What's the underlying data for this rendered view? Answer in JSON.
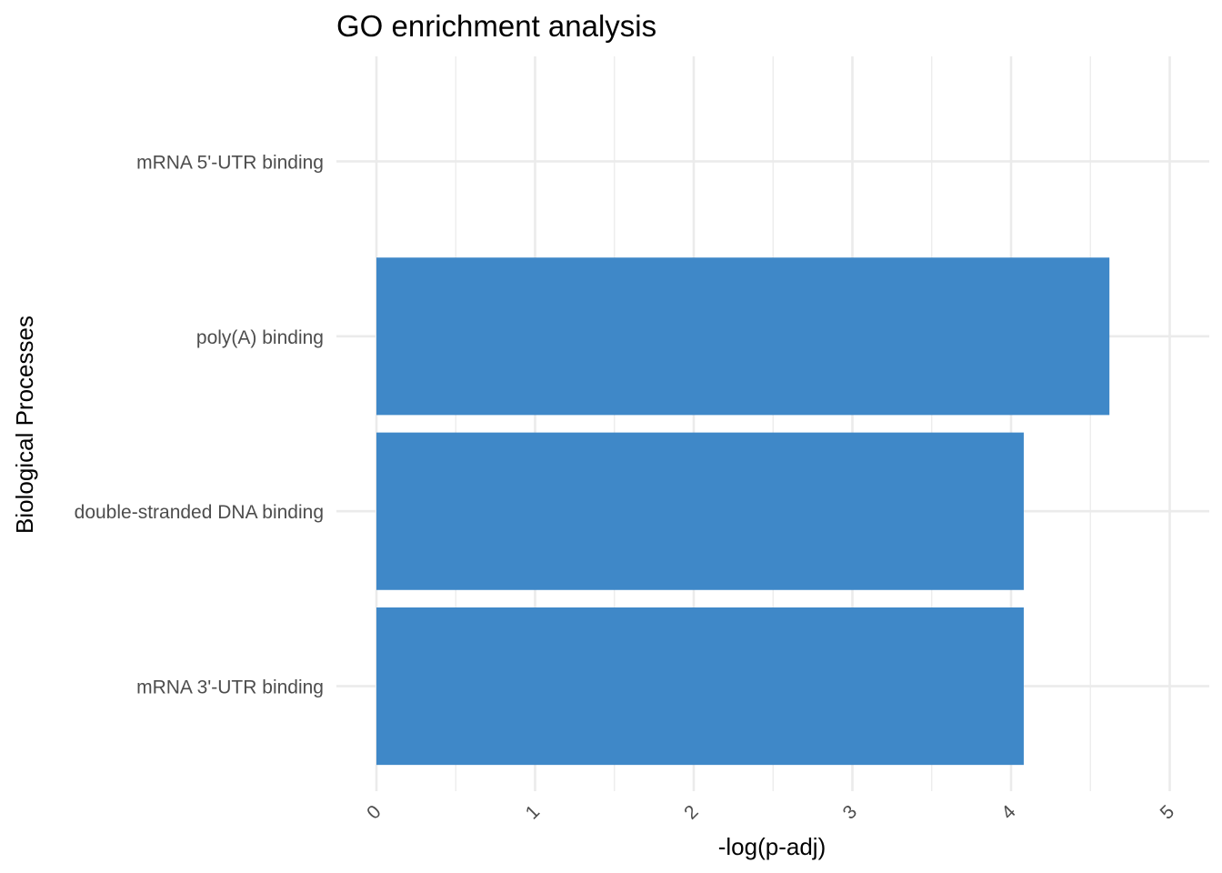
{
  "chart_data": {
    "type": "bar",
    "orientation": "horizontal",
    "title": "GO enrichment analysis",
    "xlabel": "-log(p-adj)",
    "ylabel": "Biological Processes",
    "categories": [
      "mRNA 3'-UTR binding",
      "double-stranded DNA binding",
      "poly(A) binding",
      "mRNA 5'-UTR binding"
    ],
    "values": [
      4.08,
      4.08,
      4.62,
      0
    ],
    "xlim": [
      0,
      5
    ],
    "x_ticks": [
      "0",
      "1",
      "2",
      "3",
      "4",
      "5"
    ],
    "bar_color": "#3f88c8",
    "grid": true,
    "legend": "none"
  }
}
